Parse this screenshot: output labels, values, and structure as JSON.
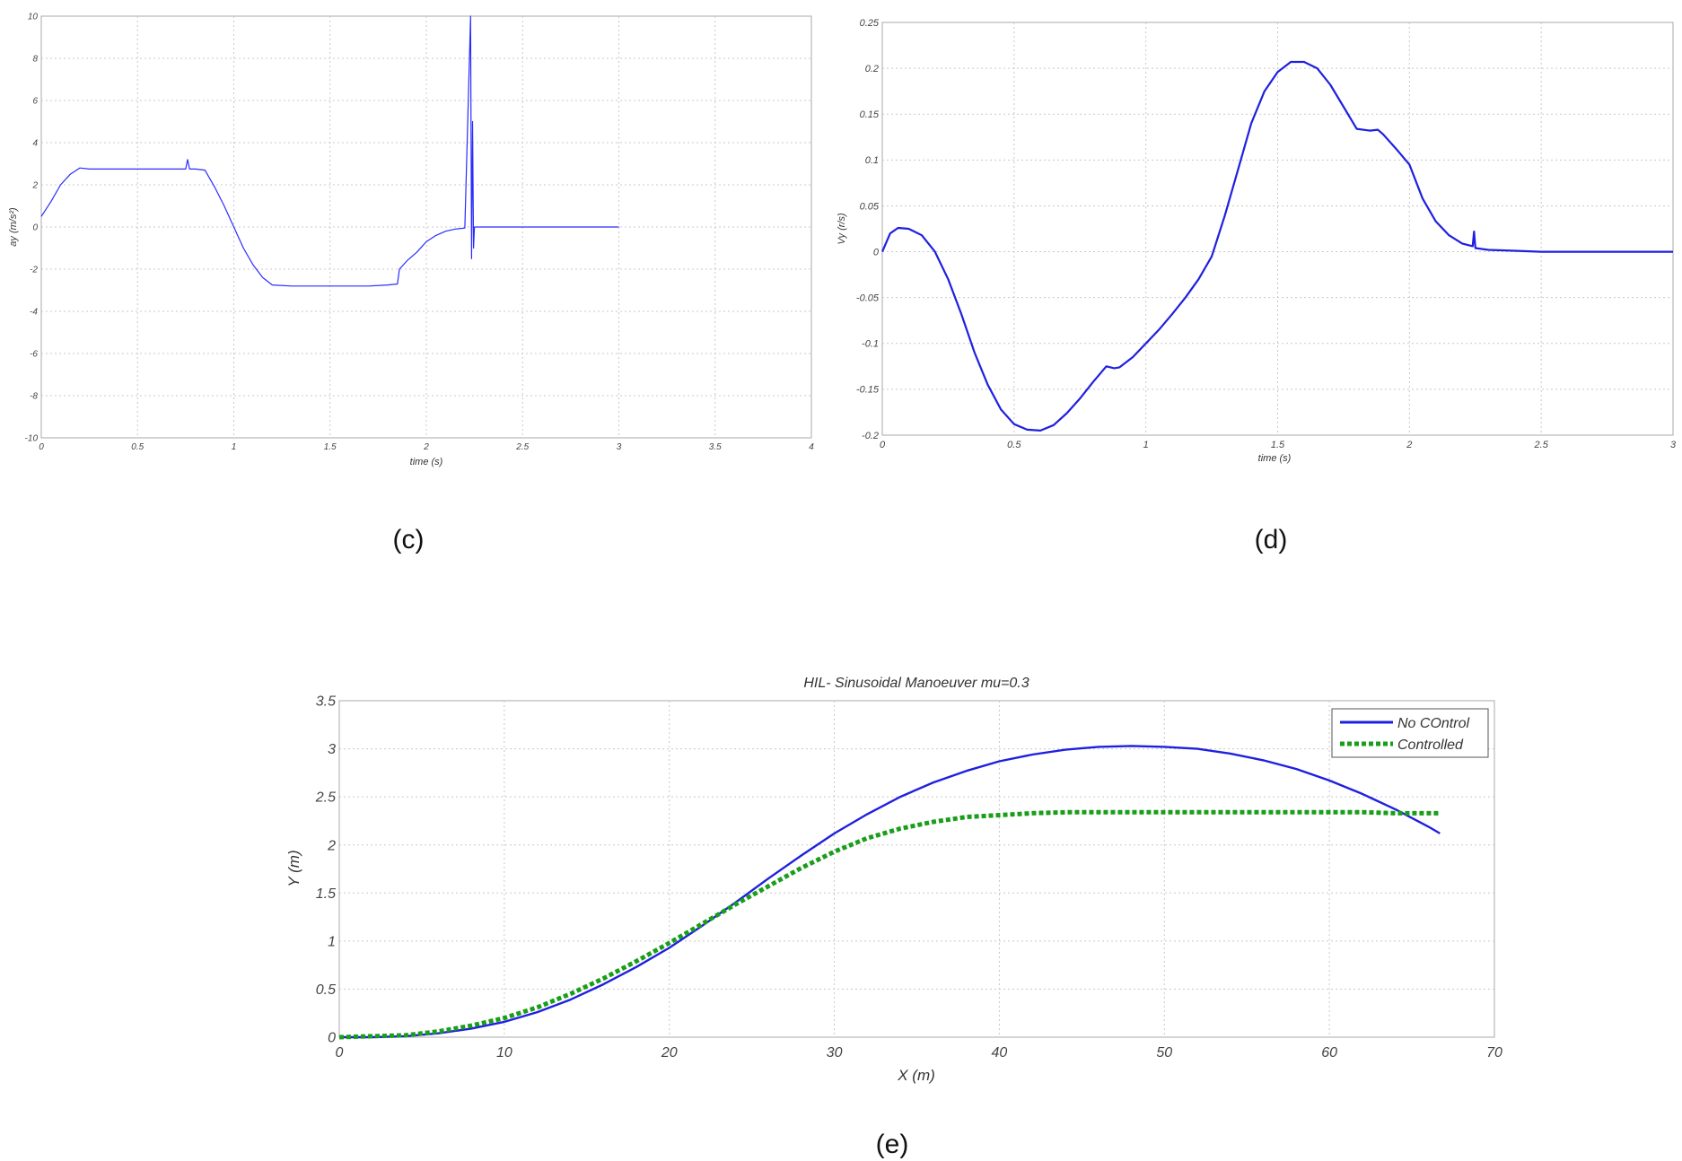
{
  "chart_data": [
    {
      "type": "line",
      "id": "c",
      "caption": "(c)",
      "xlabel": "time (s)",
      "ylabel": "ay (m/s²)",
      "xlim": [
        0,
        4
      ],
      "ylim": [
        -10,
        10
      ],
      "xticks": [
        0,
        0.5,
        1,
        1.5,
        2,
        2.5,
        3,
        3.5,
        4
      ],
      "xtick_labels": [
        "0",
        "0.5",
        "1",
        "1.5",
        "2",
        "2.5",
        "3",
        "3.5",
        "4"
      ],
      "yticks": [
        -10,
        -8,
        -6,
        -4,
        -2,
        0,
        2,
        4,
        6,
        8,
        10
      ],
      "ytick_labels": [
        "-10",
        "-8",
        "-6",
        "-4",
        "-2",
        "0",
        "2",
        "4",
        "6",
        "8",
        "10"
      ],
      "grid": true,
      "color": "#2b2bff",
      "series": [
        {
          "x": [
            0,
            0.05,
            0.1,
            0.15,
            0.2,
            0.25,
            0.3,
            0.4,
            0.5,
            0.6,
            0.7,
            0.75,
            0.76,
            0.77,
            0.8,
            0.85,
            0.9,
            0.95,
            1.0,
            1.05,
            1.1,
            1.15,
            1.2,
            1.3,
            1.4,
            1.5,
            1.6,
            1.7,
            1.8,
            1.85,
            1.86,
            1.9,
            1.95,
            2.0,
            2.05,
            2.1,
            2.15,
            2.2,
            2.23,
            2.235,
            2.24,
            2.245,
            2.25,
            2.26,
            2.3,
            2.4,
            2.5,
            2.6,
            2.7,
            2.8,
            2.9,
            3.0
          ],
          "y": [
            0.5,
            1.2,
            2.0,
            2.5,
            2.8,
            2.75,
            2.75,
            2.75,
            2.75,
            2.75,
            2.75,
            2.75,
            3.2,
            2.75,
            2.75,
            2.7,
            1.9,
            1.0,
            0.0,
            -1.0,
            -1.8,
            -2.4,
            -2.75,
            -2.8,
            -2.8,
            -2.8,
            -2.8,
            -2.8,
            -2.75,
            -2.7,
            -2.0,
            -1.6,
            -1.2,
            -0.7,
            -0.4,
            -0.2,
            -0.1,
            -0.05,
            10.0,
            -1.5,
            5.0,
            -1.0,
            0.0,
            0.0,
            0.0,
            0.0,
            0.0,
            0.0,
            0.0,
            0.0,
            0.0,
            0.0
          ]
        }
      ]
    },
    {
      "type": "line",
      "id": "d",
      "caption": "(d)",
      "xlabel": "time (s)",
      "ylabel": "Vy (r/s)",
      "xlim": [
        0,
        3
      ],
      "ylim": [
        -0.2,
        0.25
      ],
      "xticks": [
        0,
        0.5,
        1,
        1.5,
        2,
        2.5,
        3
      ],
      "xtick_labels": [
        "0",
        "0.5",
        "1",
        "1.5",
        "2",
        "2.5",
        "3"
      ],
      "yticks": [
        -0.2,
        -0.15,
        -0.1,
        -0.05,
        0,
        0.05,
        0.1,
        0.15,
        0.2,
        0.25
      ],
      "ytick_labels": [
        "-0.2",
        "-0.15",
        "-0.1",
        "-0.05",
        "0",
        "0.05",
        "0.1",
        "0.15",
        "0.2",
        "0.25"
      ],
      "grid": true,
      "color": "#1f1fe0",
      "series": [
        {
          "x": [
            0,
            0.03,
            0.06,
            0.1,
            0.15,
            0.2,
            0.25,
            0.3,
            0.35,
            0.4,
            0.45,
            0.5,
            0.55,
            0.6,
            0.65,
            0.7,
            0.75,
            0.8,
            0.85,
            0.88,
            0.9,
            0.95,
            1.0,
            1.05,
            1.1,
            1.15,
            1.2,
            1.25,
            1.3,
            1.35,
            1.4,
            1.45,
            1.5,
            1.55,
            1.6,
            1.65,
            1.7,
            1.75,
            1.8,
            1.85,
            1.88,
            1.9,
            1.95,
            2.0,
            2.05,
            2.1,
            2.15,
            2.2,
            2.24,
            2.245,
            2.25,
            2.3,
            2.4,
            2.5,
            2.6,
            2.7,
            2.8,
            3.0
          ],
          "y": [
            0.0,
            0.02,
            0.026,
            0.025,
            0.018,
            0.0,
            -0.03,
            -0.068,
            -0.11,
            -0.145,
            -0.172,
            -0.188,
            -0.194,
            -0.195,
            -0.189,
            -0.176,
            -0.16,
            -0.142,
            -0.125,
            -0.127,
            -0.126,
            -0.115,
            -0.1,
            -0.085,
            -0.068,
            -0.05,
            -0.03,
            -0.005,
            0.04,
            0.09,
            0.14,
            0.175,
            0.196,
            0.207,
            0.207,
            0.2,
            0.182,
            0.158,
            0.134,
            0.132,
            0.133,
            0.128,
            0.112,
            0.095,
            0.058,
            0.033,
            0.018,
            0.009,
            0.006,
            0.022,
            0.004,
            0.002,
            0.001,
            0.0,
            0.0,
            0.0,
            0.0,
            0.0
          ]
        }
      ]
    },
    {
      "type": "line",
      "id": "e",
      "caption": "(e)",
      "title": "HIL- Sinusoidal Manoeuver mu=0.3",
      "xlabel": "X (m)",
      "ylabel": "Y (m)",
      "xlim": [
        0,
        70
      ],
      "ylim": [
        0,
        3.5
      ],
      "xticks": [
        0,
        10,
        20,
        30,
        40,
        50,
        60,
        70
      ],
      "xtick_labels": [
        "0",
        "10",
        "20",
        "30",
        "40",
        "50",
        "60",
        "70"
      ],
      "yticks": [
        0,
        0.5,
        1,
        1.5,
        2,
        2.5,
        3,
        3.5
      ],
      "ytick_labels": [
        "0",
        "0.5",
        "1",
        "1.5",
        "2",
        "2.5",
        "3",
        "3.5"
      ],
      "grid": true,
      "legend": "top-right",
      "series": [
        {
          "name": "No COntrol",
          "color": "#1f1fe0",
          "style": "solid",
          "x": [
            0,
            2,
            4,
            6,
            8,
            10,
            12,
            14,
            16,
            18,
            20,
            22,
            24,
            26,
            28,
            30,
            32,
            34,
            36,
            38,
            40,
            42,
            44,
            46,
            48,
            50,
            52,
            54,
            56,
            58,
            60,
            62,
            64,
            66,
            66.7
          ],
          "y": [
            0,
            0,
            0.01,
            0.04,
            0.09,
            0.16,
            0.26,
            0.39,
            0.55,
            0.73,
            0.93,
            1.16,
            1.4,
            1.65,
            1.89,
            2.12,
            2.32,
            2.5,
            2.65,
            2.77,
            2.87,
            2.94,
            2.99,
            3.02,
            3.03,
            3.02,
            3.0,
            2.95,
            2.88,
            2.79,
            2.67,
            2.53,
            2.37,
            2.19,
            2.12
          ]
        },
        {
          "name": "Controlled",
          "color": "#1a9e1a",
          "style": "dotted",
          "x": [
            0,
            2,
            4,
            6,
            8,
            10,
            12,
            14,
            16,
            18,
            20,
            22,
            24,
            26,
            28,
            30,
            32,
            34,
            36,
            38,
            40,
            42,
            44,
            46,
            48,
            50,
            52,
            54,
            56,
            58,
            60,
            62,
            64,
            66,
            66.7
          ],
          "y": [
            0,
            0.01,
            0.02,
            0.06,
            0.12,
            0.2,
            0.31,
            0.45,
            0.61,
            0.79,
            0.98,
            1.18,
            1.38,
            1.57,
            1.76,
            1.93,
            2.07,
            2.17,
            2.24,
            2.29,
            2.31,
            2.33,
            2.34,
            2.34,
            2.34,
            2.34,
            2.34,
            2.34,
            2.34,
            2.34,
            2.34,
            2.34,
            2.33,
            2.33,
            2.33
          ]
        }
      ]
    }
  ]
}
